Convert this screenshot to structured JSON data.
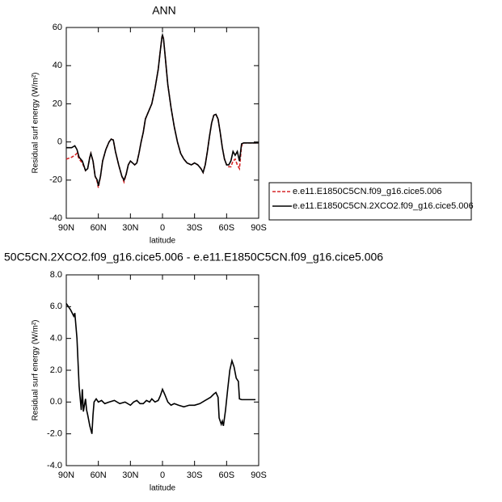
{
  "chart_data": [
    {
      "type": "line",
      "title": "ANN",
      "ylabel": "Residual surf energy (W/m²)",
      "xlabel": "latitude",
      "x": [
        90,
        85,
        82,
        80,
        78,
        75,
        72,
        70,
        68,
        67,
        65,
        63,
        61,
        60,
        58,
        56,
        53,
        50,
        48,
        46,
        44,
        41,
        38,
        36,
        34,
        32,
        30,
        28,
        26,
        24,
        22,
        20,
        18,
        16,
        13,
        10,
        7,
        4,
        2,
        0.5,
        0,
        -1,
        -3,
        -5,
        -8,
        -11,
        -14,
        -17,
        -20,
        -23,
        -27,
        -30,
        -33,
        -36,
        -38,
        -40,
        -42,
        -44,
        -46,
        -48,
        -50,
        -52,
        -54,
        -56,
        -58,
        -60,
        -62,
        -64,
        -66,
        -68,
        -70,
        -72,
        -74,
        -76,
        -80,
        -90
      ],
      "series": [
        {
          "name": "e.e11.E1850C5CN.f09_g16.cice5.006",
          "color": "#d62728",
          "style": "dashed",
          "values": [
            -9,
            -8,
            -7,
            -6,
            -9,
            -11,
            -15,
            -14,
            -8,
            -6,
            -10,
            -18,
            -21,
            -24,
            -18,
            -10,
            -4,
            0,
            1.5,
            1,
            -5,
            -12,
            -18,
            -21,
            -17,
            -12,
            -10,
            -11,
            -12,
            -11,
            -6,
            0,
            5,
            12,
            16,
            20,
            28,
            38,
            48,
            55,
            56,
            54,
            42,
            30,
            18,
            8,
            0,
            -6,
            -9,
            -11,
            -12,
            -11,
            -12,
            -14,
            -16,
            -12,
            -5,
            3,
            10,
            14,
            14.5,
            12,
            5,
            -3,
            -9,
            -12,
            -13,
            -13,
            -10,
            -9,
            -12,
            -14,
            -2,
            -0.5,
            -0.5,
            -0.5
          ]
        },
        {
          "name": "e.e11.E1850C5CN.2XCO2.f09_g16.cice5.006",
          "color": "#000000",
          "style": "solid",
          "values": [
            -3,
            -3,
            -2,
            -4,
            -8,
            -10,
            -15,
            -14,
            -8,
            -6,
            -10,
            -18,
            -20,
            -23,
            -18,
            -10,
            -4,
            0,
            1.5,
            1,
            -5,
            -12,
            -18,
            -20,
            -17,
            -12,
            -10,
            -11,
            -12,
            -11,
            -6,
            0,
            5,
            12,
            16,
            20,
            28,
            38,
            48,
            55,
            56,
            54,
            42,
            30,
            18,
            8,
            0,
            -6,
            -9,
            -11,
            -12,
            -11,
            -12,
            -14,
            -16,
            -12,
            -5,
            3,
            10,
            14,
            14.5,
            12,
            5,
            -3,
            -9,
            -12,
            -12,
            -10,
            -5,
            -7,
            -5,
            -10,
            -1,
            -0.5,
            -0.5,
            -0.5
          ]
        }
      ],
      "xlim": [
        90,
        -90
      ],
      "xticks": [
        {
          "value": 90,
          "label": "90N"
        },
        {
          "value": 60,
          "label": "60N"
        },
        {
          "value": 30,
          "label": "30N"
        },
        0,
        {
          "value": -30,
          "label": "30S"
        },
        {
          "value": -60,
          "label": "60S"
        },
        {
          "value": -90,
          "label": "90S"
        }
      ],
      "ylim": [
        -40,
        60
      ],
      "yticks": [
        -40,
        -20,
        0,
        20,
        40,
        60
      ],
      "legend": "outside-right"
    },
    {
      "type": "line",
      "title": "50C5CN.2XCO2.f09_g16.cice5.006 - e.e11.E1850C5CN.f09_g16.cice5.006",
      "ylabel": "Residual surf energy (W/m²)",
      "xlabel": "latitude",
      "x": [
        90,
        86,
        83,
        82,
        80,
        78,
        76,
        75,
        74,
        72,
        71,
        70,
        68,
        66,
        65,
        64,
        62,
        60,
        57,
        54,
        50,
        45,
        40,
        35,
        30,
        27,
        24,
        21,
        18,
        15,
        12,
        10,
        7,
        4,
        2,
        0,
        -2,
        -5,
        -8,
        -11,
        -15,
        -20,
        -25,
        -30,
        -35,
        -40,
        -45,
        -48,
        -50,
        -52,
        -53,
        -55,
        -56,
        -57,
        -59,
        -61,
        -63,
        -65,
        -67,
        -69,
        -71,
        -72,
        -74,
        -80,
        -87
      ],
      "values": [
        6.2,
        5.8,
        5.4,
        5.6,
        4.0,
        1.0,
        -0.5,
        0.8,
        -0.6,
        0.2,
        -0.5,
        -0.8,
        -1.5,
        -2.0,
        -0.8,
        0.0,
        0.2,
        0.0,
        0.1,
        -0.1,
        0.0,
        0.1,
        -0.1,
        0.0,
        -0.2,
        0.0,
        0.1,
        -0.1,
        -0.1,
        0.1,
        0.0,
        0.2,
        0.0,
        0.1,
        0.4,
        0.8,
        0.5,
        0.0,
        -0.2,
        -0.1,
        -0.2,
        -0.3,
        -0.2,
        -0.2,
        -0.1,
        0.1,
        0.3,
        0.5,
        0.6,
        0.3,
        -1.0,
        -1.4,
        -1.2,
        -1.5,
        -0.5,
        0.8,
        2.0,
        2.6,
        2.2,
        1.5,
        1.3,
        0.2,
        0.15,
        0.15,
        0.15
      ],
      "color": "#000000",
      "xlim": [
        90,
        -90
      ],
      "xticks": [
        {
          "value": 90,
          "label": "90N"
        },
        {
          "value": 60,
          "label": "60N"
        },
        {
          "value": 30,
          "label": "30N"
        },
        0,
        {
          "value": -30,
          "label": "30S"
        },
        {
          "value": -60,
          "label": "60S"
        },
        {
          "value": -90,
          "label": "90S"
        }
      ],
      "ylim": [
        -4,
        8
      ],
      "yticks": [
        {
          "value": -4,
          "label": "-4.0"
        },
        {
          "value": -2,
          "label": "-2.0"
        },
        {
          "value": 0,
          "label": "0.0"
        },
        {
          "value": 2,
          "label": "2.0"
        },
        {
          "value": 4,
          "label": "4.0"
        },
        {
          "value": 6,
          "label": "6.0"
        },
        {
          "value": 8,
          "label": "8.0"
        }
      ]
    }
  ]
}
